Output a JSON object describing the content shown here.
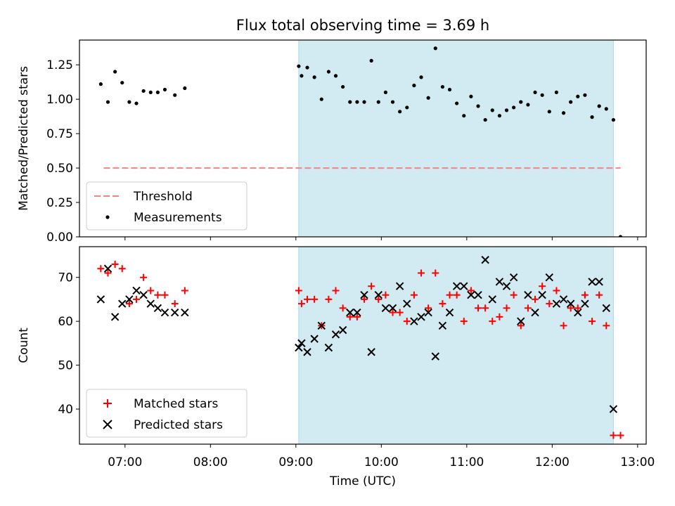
{
  "title": "Flux total observing time = 3.69 h",
  "colors": {
    "span": "#add8e6",
    "threshold": "#ff7f7f",
    "matched": "#ff0000",
    "predicted": "#000000",
    "measurement": "#000000"
  },
  "chart_data": [
    {
      "type": "scatter",
      "panel": "top",
      "ylabel": "Matched/Predicted stars",
      "ylim": [
        0.0,
        1.43
      ],
      "yticks": [
        0.0,
        0.25,
        0.5,
        0.75,
        1.0,
        1.25
      ],
      "yticklabels": [
        "0.00",
        "0.25",
        "0.50",
        "0.75",
        "1.00",
        "1.25"
      ],
      "xlim": [
        "06:28",
        "13:06"
      ],
      "highlight_span": [
        "09:02",
        "12:43"
      ],
      "threshold": {
        "name": "Threshold",
        "value": 0.5,
        "x_range": [
          "06:45",
          "12:48"
        ],
        "style": "dashed"
      },
      "legend": {
        "position": "lower left",
        "entries": [
          "Threshold",
          "Measurements"
        ]
      },
      "series": [
        {
          "name": "Measurements",
          "points": [
            [
              "06:43",
              1.11
            ],
            [
              "06:48",
              0.98
            ],
            [
              "06:53",
              1.2
            ],
            [
              "06:58",
              1.12
            ],
            [
              "07:03",
              0.98
            ],
            [
              "07:08",
              0.97
            ],
            [
              "07:13",
              1.06
            ],
            [
              "07:18",
              1.05
            ],
            [
              "07:23",
              1.05
            ],
            [
              "07:28",
              1.07
            ],
            [
              "07:35",
              1.03
            ],
            [
              "07:42",
              1.08
            ],
            [
              "09:02",
              1.24
            ],
            [
              "09:04",
              1.17
            ],
            [
              "09:08",
              1.23
            ],
            [
              "09:13",
              1.16
            ],
            [
              "09:18",
              1.0
            ],
            [
              "09:23",
              1.2
            ],
            [
              "09:28",
              1.17
            ],
            [
              "09:33",
              1.09
            ],
            [
              "09:38",
              0.98
            ],
            [
              "09:43",
              0.98
            ],
            [
              "09:48",
              0.98
            ],
            [
              "09:53",
              1.28
            ],
            [
              "09:58",
              0.98
            ],
            [
              "10:03",
              1.05
            ],
            [
              "10:08",
              0.98
            ],
            [
              "10:13",
              0.91
            ],
            [
              "10:18",
              0.94
            ],
            [
              "10:23",
              1.1
            ],
            [
              "10:28",
              1.16
            ],
            [
              "10:33",
              1.01
            ],
            [
              "10:38",
              1.37
            ],
            [
              "10:43",
              1.09
            ],
            [
              "10:48",
              1.07
            ],
            [
              "10:53",
              0.97
            ],
            [
              "10:58",
              0.88
            ],
            [
              "11:03",
              1.02
            ],
            [
              "11:08",
              0.95
            ],
            [
              "11:13",
              0.85
            ],
            [
              "11:18",
              0.92
            ],
            [
              "11:23",
              0.88
            ],
            [
              "11:28",
              0.92
            ],
            [
              "11:33",
              0.94
            ],
            [
              "11:38",
              0.98
            ],
            [
              "11:43",
              0.96
            ],
            [
              "11:48",
              1.05
            ],
            [
              "11:53",
              1.03
            ],
            [
              "11:58",
              0.91
            ],
            [
              "12:03",
              1.05
            ],
            [
              "12:08",
              0.9
            ],
            [
              "12:13",
              0.98
            ],
            [
              "12:18",
              1.02
            ],
            [
              "12:23",
              1.03
            ],
            [
              "12:28",
              0.87
            ],
            [
              "12:33",
              0.95
            ],
            [
              "12:38",
              0.93
            ],
            [
              "12:43",
              0.85
            ],
            [
              "12:48",
              0.0
            ]
          ]
        }
      ]
    },
    {
      "type": "scatter",
      "panel": "bottom",
      "xlabel": "Time (UTC)",
      "ylabel": "Count",
      "ylim": [
        32,
        77
      ],
      "yticks": [
        40,
        50,
        60,
        70
      ],
      "yticklabels": [
        "40",
        "50",
        "60",
        "70"
      ],
      "xlim": [
        "06:28",
        "13:06"
      ],
      "xticks": [
        "07:00",
        "08:00",
        "09:00",
        "10:00",
        "11:00",
        "12:00",
        "13:00"
      ],
      "xticklabels": [
        "07:00",
        "08:00",
        "09:00",
        "10:00",
        "11:00",
        "12:00",
        "13:00"
      ],
      "highlight_span": [
        "09:02",
        "12:43"
      ],
      "legend": {
        "position": "lower left",
        "entries": [
          "Matched stars",
          "Predicted stars"
        ]
      },
      "series": [
        {
          "name": "Matched stars",
          "marker": "+",
          "points": [
            [
              "06:43",
              72
            ],
            [
              "06:48",
              71
            ],
            [
              "06:53",
              73
            ],
            [
              "06:58",
              72
            ],
            [
              "07:03",
              64
            ],
            [
              "07:08",
              65
            ],
            [
              "07:13",
              70
            ],
            [
              "07:18",
              67
            ],
            [
              "07:23",
              66
            ],
            [
              "07:28",
              66
            ],
            [
              "07:35",
              64
            ],
            [
              "07:42",
              67
            ],
            [
              "09:02",
              67
            ],
            [
              "09:04",
              64
            ],
            [
              "09:08",
              65
            ],
            [
              "09:13",
              65
            ],
            [
              "09:18",
              59
            ],
            [
              "09:23",
              65
            ],
            [
              "09:28",
              67
            ],
            [
              "09:33",
              63
            ],
            [
              "09:38",
              61
            ],
            [
              "09:43",
              61
            ],
            [
              "09:48",
              65
            ],
            [
              "09:53",
              68
            ],
            [
              "09:58",
              65
            ],
            [
              "10:03",
              66
            ],
            [
              "10:08",
              62
            ],
            [
              "10:13",
              62
            ],
            [
              "10:18",
              60
            ],
            [
              "10:23",
              66
            ],
            [
              "10:28",
              71
            ],
            [
              "10:33",
              63
            ],
            [
              "10:38",
              71
            ],
            [
              "10:43",
              64
            ],
            [
              "10:48",
              66
            ],
            [
              "10:53",
              66
            ],
            [
              "10:58",
              60
            ],
            [
              "11:03",
              67
            ],
            [
              "11:08",
              63
            ],
            [
              "11:13",
              63
            ],
            [
              "11:18",
              60
            ],
            [
              "11:23",
              61
            ],
            [
              "11:28",
              63
            ],
            [
              "11:33",
              66
            ],
            [
              "11:38",
              59
            ],
            [
              "11:43",
              63
            ],
            [
              "11:48",
              65
            ],
            [
              "11:53",
              68
            ],
            [
              "11:58",
              64
            ],
            [
              "12:03",
              67
            ],
            [
              "12:08",
              59
            ],
            [
              "12:13",
              63
            ],
            [
              "12:18",
              63
            ],
            [
              "12:23",
              66
            ],
            [
              "12:28",
              60
            ],
            [
              "12:33",
              66
            ],
            [
              "12:38",
              59
            ],
            [
              "12:43",
              34
            ],
            [
              "12:48",
              34
            ]
          ]
        },
        {
          "name": "Predicted stars",
          "marker": "x",
          "points": [
            [
              "06:43",
              65
            ],
            [
              "06:48",
              72
            ],
            [
              "06:53",
              61
            ],
            [
              "06:58",
              64
            ],
            [
              "07:03",
              65
            ],
            [
              "07:08",
              67
            ],
            [
              "07:13",
              66
            ],
            [
              "07:18",
              64
            ],
            [
              "07:23",
              63
            ],
            [
              "07:28",
              62
            ],
            [
              "07:35",
              62
            ],
            [
              "07:42",
              62
            ],
            [
              "09:02",
              54
            ],
            [
              "09:04",
              55
            ],
            [
              "09:08",
              53
            ],
            [
              "09:13",
              56
            ],
            [
              "09:18",
              59
            ],
            [
              "09:23",
              54
            ],
            [
              "09:28",
              57
            ],
            [
              "09:33",
              58
            ],
            [
              "09:38",
              62
            ],
            [
              "09:43",
              62
            ],
            [
              "09:48",
              66
            ],
            [
              "09:53",
              53
            ],
            [
              "09:58",
              66
            ],
            [
              "10:03",
              63
            ],
            [
              "10:08",
              63
            ],
            [
              "10:13",
              68
            ],
            [
              "10:18",
              64
            ],
            [
              "10:23",
              60
            ],
            [
              "10:28",
              61
            ],
            [
              "10:33",
              62
            ],
            [
              "10:38",
              52
            ],
            [
              "10:43",
              59
            ],
            [
              "10:48",
              62
            ],
            [
              "10:53",
              68
            ],
            [
              "10:58",
              68
            ],
            [
              "11:03",
              66
            ],
            [
              "11:08",
              66
            ],
            [
              "11:13",
              74
            ],
            [
              "11:18",
              65
            ],
            [
              "11:23",
              69
            ],
            [
              "11:28",
              68
            ],
            [
              "11:33",
              70
            ],
            [
              "11:38",
              60
            ],
            [
              "11:43",
              66
            ],
            [
              "11:48",
              62
            ],
            [
              "11:53",
              66
            ],
            [
              "11:58",
              70
            ],
            [
              "12:03",
              64
            ],
            [
              "12:08",
              65
            ],
            [
              "12:13",
              64
            ],
            [
              "12:18",
              62
            ],
            [
              "12:23",
              64
            ],
            [
              "12:28",
              69
            ],
            [
              "12:33",
              69
            ],
            [
              "12:38",
              63
            ],
            [
              "12:43",
              40
            ]
          ]
        }
      ]
    }
  ]
}
